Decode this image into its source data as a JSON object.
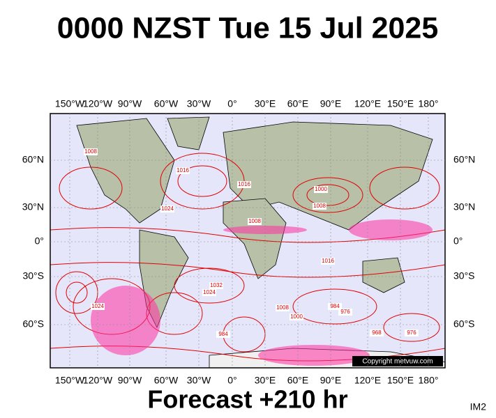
{
  "header": {
    "title": "0000 NZST Tue 15 Jul 2025"
  },
  "map": {
    "top_lon_labels": [
      "150°W",
      "120°W",
      "90°W",
      "60°W",
      "30°W",
      "0°",
      "30°E",
      "60°E",
      "90°E",
      "120°E",
      "150°E",
      "180°"
    ],
    "bottom_lon_labels": [
      "150°W",
      "120°W",
      "90°W",
      "60°W",
      "30°W",
      "0°",
      "30°E",
      "60°E",
      "90°E",
      "120°E",
      "150°E",
      "180°"
    ],
    "left_lat_labels": [
      "60°N",
      "30°N",
      "0°",
      "30°S",
      "60°S"
    ],
    "right_lat_labels": [
      "60°N",
      "30°N",
      "0°",
      "30°S",
      "60°S"
    ],
    "isobar_labels": [
      "1008",
      "1016",
      "1024",
      "1016",
      "1008",
      "1000",
      "1008",
      "1032",
      "1024",
      "1008",
      "984",
      "976",
      "1000",
      "968",
      "976",
      "1016",
      "984",
      "1024"
    ],
    "copyright": "Copyright metvuw.com"
  },
  "footer": {
    "forecast": "Forecast +210 hr",
    "code": "IM2"
  }
}
